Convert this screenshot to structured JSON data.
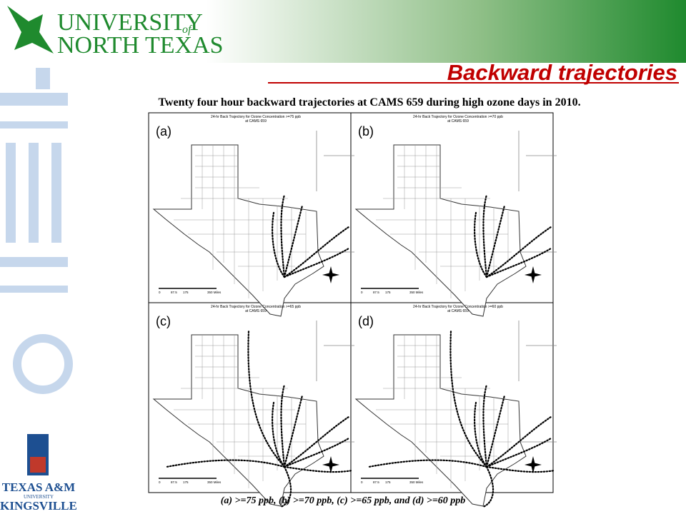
{
  "header": {
    "logo_line1": "UNIVERSITY",
    "logo_of": "of",
    "logo_line2": "NORTH TEXAS",
    "title": "Backward trajectories"
  },
  "caption": "Twenty four hour backward trajectories at CAMS 659 during high ozone days in 2010.",
  "panels": [
    {
      "label": "(a)",
      "title": "24-hr Back Trajectory for Ozone Concentration >=75 ppb",
      "subtitle": "at CAMS 659"
    },
    {
      "label": "(b)",
      "title": "24-hr Back Trajectory for Ozone Concentration >=70 ppb",
      "subtitle": "at CAMS 659"
    },
    {
      "label": "(c)",
      "title": "24-hr Back Trajectory for Ozone Concentration >=65 ppb",
      "subtitle": "at CAMS 659"
    },
    {
      "label": "(d)",
      "title": "24-hr Back Trajectory for Ozone Concentration >=60 ppb",
      "subtitle": "at CAMS 659"
    }
  ],
  "scale": {
    "ticks": [
      "0",
      "87.5",
      "175",
      "350 Miles"
    ]
  },
  "footnote": "(a) >=75 ppb, (b) >=70 ppb, (c) >=65 ppb, and (d) >=60 ppb",
  "footer_logo": {
    "line1": "TEXAS A&M",
    "line2": "UNIVERSITY",
    "line3": "KINGSVILLE"
  }
}
